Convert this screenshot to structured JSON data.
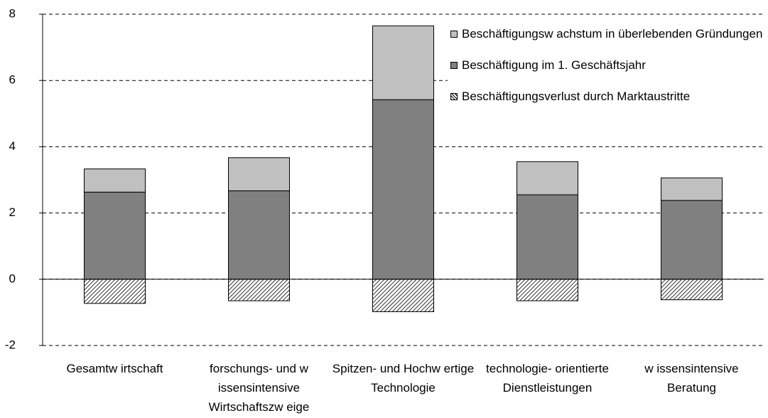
{
  "chart_data": {
    "type": "stacked_bar",
    "categories": [
      "Gesamtw irtschaft",
      "forschungs- und w issensintensive Wirtschaftszw eige",
      "Spitzen- und Hochw ertige Technologie",
      "technologie- orientierte Dienstleistungen",
      "w issensintensive Beratung"
    ],
    "series": [
      {
        "name": "Beschäftigungsw achstum in überlebenden Gründungen",
        "color": "#c0c0c0",
        "values": [
          0.7,
          1.0,
          2.23,
          1.0,
          0.68
        ]
      },
      {
        "name": "Beschäftigung im 1. Geschäftsjahr",
        "color": "#808080",
        "values": [
          2.63,
          2.67,
          5.42,
          2.55,
          2.38
        ]
      },
      {
        "name": "Beschäftigungsverlust durch Marktaustritte",
        "color": "hatch",
        "values": [
          -0.73,
          -0.65,
          -0.98,
          -0.65,
          -0.62
        ]
      }
    ],
    "ylim": [
      -2,
      8
    ],
    "yticks": [
      -2,
      0,
      2,
      4,
      6,
      8
    ],
    "grid": true,
    "legend": "top-right"
  }
}
